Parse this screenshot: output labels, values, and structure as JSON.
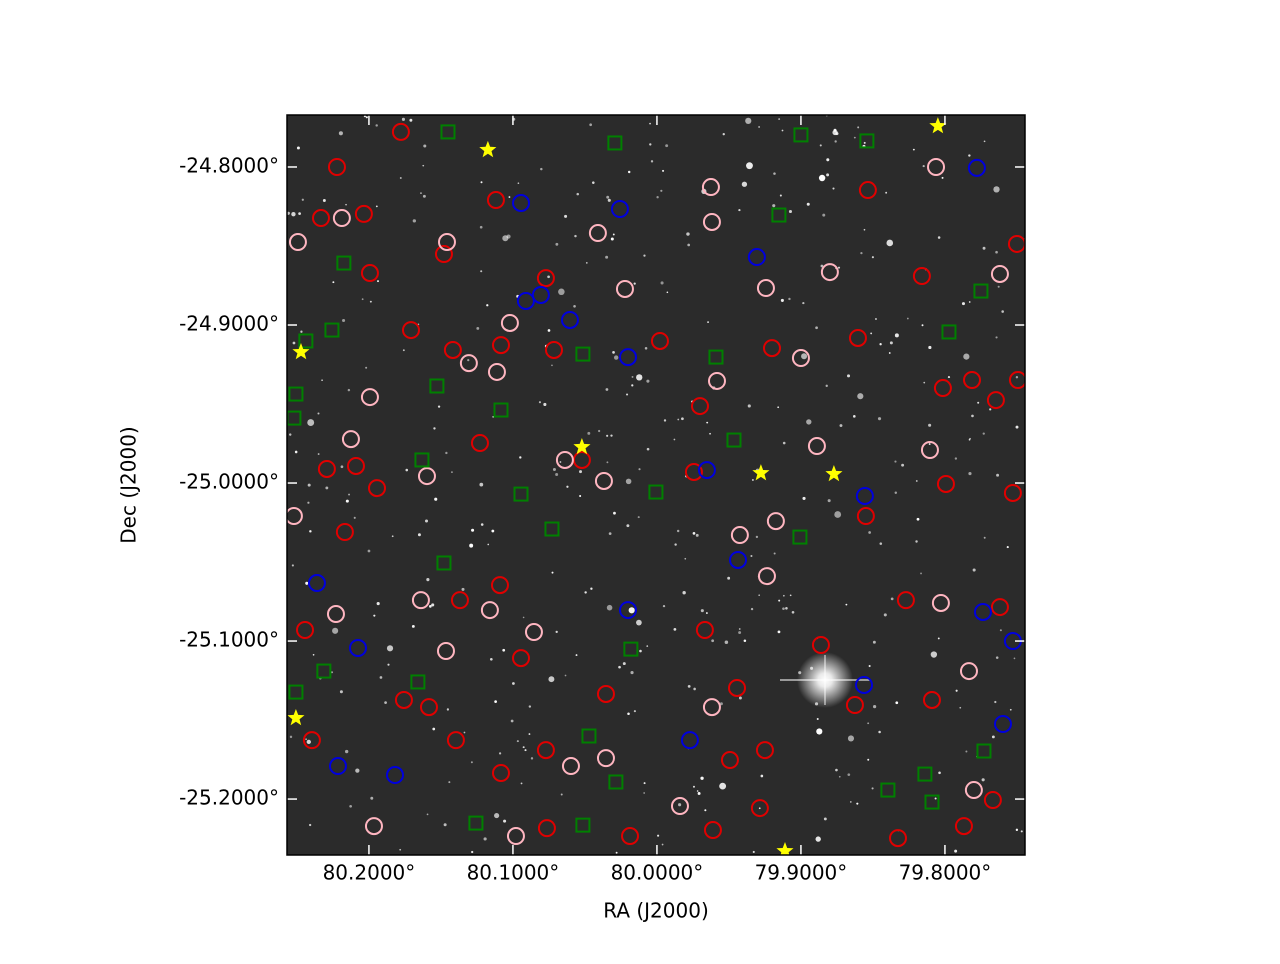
{
  "chart_data": {
    "type": "scatter",
    "xlabel": "RA (J2000)",
    "ylabel": "Dec (J2000)",
    "xlim": [
      80.2569,
      79.7444
    ],
    "ylim": [
      -25.2354,
      -24.7671
    ],
    "xticks": [
      {
        "value": 80.2,
        "label": "80.2000°"
      },
      {
        "value": 80.1,
        "label": "80.1000°"
      },
      {
        "value": 80.0,
        "label": "80.0000°"
      },
      {
        "value": 79.9,
        "label": "79.9000°"
      },
      {
        "value": 79.8,
        "label": "79.8000°"
      }
    ],
    "yticks": [
      {
        "value": -24.8,
        "label": "-24.8000°"
      },
      {
        "value": -24.9,
        "label": "-24.9000°"
      },
      {
        "value": -25.0,
        "label": "-25.0000°"
      },
      {
        "value": -25.1,
        "label": "-25.1000°"
      },
      {
        "value": -25.2,
        "label": "-25.2000°"
      }
    ],
    "series": [
      {
        "marker": "circle",
        "color": "#e00000",
        "x": [
          80.1778,
          80.2222,
          80.1118,
          80.2035,
          80.2333,
          80.1479,
          80.1993,
          80.0771,
          80.1708,
          80.1417,
          80.1083,
          80.0715,
          79.9979,
          79.9701,
          79.9201,
          79.8604,
          79.8014,
          79.7812,
          79.7646,
          80.2292,
          80.209,
          80.1229,
          80.0521,
          79.9743,
          79.8549,
          79.7993,
          79.7528,
          80.1944,
          80.2167,
          80.1368,
          80.109,
          79.9667,
          79.9444,
          79.8861,
          79.8271,
          79.7618,
          80.1757,
          80.1583,
          80.1396,
          80.0944,
          80.0771,
          80.0354,
          79.9493,
          79.925,
          79.8625,
          79.809,
          79.7667,
          79.7868,
          79.8326,
          80.1083,
          80.0764,
          80.0187,
          79.9611,
          79.9285,
          79.7493,
          79.75,
          79.816,
          79.8535,
          80.2444,
          80.2396
        ],
        "y": [
          -24.7778,
          -24.8,
          -24.8209,
          -24.8297,
          -24.8323,
          -24.8551,
          -24.8671,
          -24.8703,
          -24.9032,
          -24.9158,
          -24.9127,
          -24.9158,
          -24.9101,
          -24.9513,
          -24.9146,
          -24.9082,
          -24.9399,
          -24.9348,
          -24.9475,
          -24.9911,
          -24.9892,
          -24.9747,
          -24.9854,
          -24.993,
          -25.0209,
          -25.0006,
          -25.0063,
          -25.0032,
          -25.031,
          -25.0741,
          -25.0646,
          -25.093,
          -25.1297,
          -25.1025,
          -25.0741,
          -25.0785,
          -25.1373,
          -25.1418,
          -25.1627,
          -25.1108,
          -25.169,
          -25.1335,
          -25.1753,
          -25.169,
          -25.1405,
          -25.1373,
          -25.2006,
          -25.2171,
          -25.2247,
          -25.1835,
          -25.2184,
          -25.2234,
          -25.2196,
          -25.2057,
          -24.9348,
          -24.8487,
          -24.869,
          -24.8146,
          -25.093,
          -25.1627
        ]
      },
      {
        "marker": "circle",
        "color": "#ffb6c1",
        "x": [
          80.2493,
          80.2188,
          80.1458,
          80.1021,
          80.1306,
          80.1111,
          80.1993,
          80.2125,
          80.041,
          80.0222,
          79.9625,
          79.9618,
          79.9243,
          79.9,
          79.8889,
          79.8799,
          79.8062,
          79.7618,
          79.8104,
          79.9424,
          79.9174,
          79.9583,
          80.0368,
          80.0639,
          80.1597,
          80.2521,
          80.2229,
          80.1639,
          80.1465,
          80.0854,
          80.0354,
          80.0597,
          79.9618,
          79.9236,
          79.8028,
          79.7833,
          79.7799,
          80.1965,
          80.0979,
          79.984,
          80.116
        ],
        "y": [
          -24.8475,
          -24.8323,
          -24.8475,
          -24.8987,
          -24.9241,
          -24.9297,
          -24.9456,
          -24.9722,
          -24.8418,
          -24.8772,
          -24.8127,
          -24.8348,
          -24.8766,
          -24.9209,
          -24.9766,
          -24.8665,
          -24.8,
          -24.8677,
          -24.9791,
          -25.0329,
          -25.0241,
          -24.9354,
          -24.9987,
          -24.9854,
          -24.9956,
          -25.0209,
          -25.0829,
          -25.0741,
          -25.1063,
          -25.0943,
          -25.1741,
          -25.1791,
          -25.1418,
          -25.0589,
          -25.0759,
          -25.119,
          -25.1943,
          -25.2171,
          -25.2234,
          -25.2044,
          -25.0804
        ]
      },
      {
        "marker": "circle",
        "color": "#0000dd",
        "x": [
          80.0944,
          80.0257,
          79.9306,
          80.091,
          80.0806,
          80.0604,
          80.0201,
          79.9653,
          79.8556,
          79.9437,
          80.2361,
          80.0201,
          80.2076,
          79.7736,
          79.7528,
          79.8562,
          79.7597,
          79.9771,
          80.2215,
          80.1819,
          79.7778
        ],
        "y": [
          -24.8228,
          -24.8266,
          -24.857,
          -24.8848,
          -24.881,
          -24.8968,
          -24.9203,
          -24.9918,
          -25.0082,
          -25.0487,
          -25.0633,
          -25.0804,
          -25.1044,
          -25.0816,
          -25.1,
          -25.1278,
          -25.1525,
          -25.1627,
          -25.1791,
          -25.1848,
          -24.8006
        ]
      },
      {
        "marker": "square",
        "color": "#008000",
        "x": [
          80.1451,
          80.0292,
          79.9,
          79.8542,
          79.9153,
          80.2174,
          79.775,
          80.2257,
          79.7972,
          80.2438,
          80.0514,
          79.959,
          80.1528,
          80.2507,
          80.1083,
          80.2521,
          79.9465,
          80.1632,
          80.0007,
          80.0944,
          80.0729,
          79.9007,
          80.1479,
          80.0181,
          80.2313,
          80.166,
          80.2507,
          80.0472,
          79.7729,
          79.8139,
          80.0285,
          79.8396,
          79.809,
          80.1257,
          80.0514
        ],
        "y": [
          -24.7778,
          -24.7848,
          -24.7797,
          -24.7835,
          -24.8304,
          -24.8608,
          -24.8785,
          -24.9032,
          -24.9044,
          -24.9101,
          -24.9184,
          -24.9203,
          -24.9386,
          -24.9437,
          -24.9538,
          -24.9589,
          -24.9728,
          -24.9854,
          -25.0057,
          -25.007,
          -25.0291,
          -25.0342,
          -25.0506,
          -25.1051,
          -25.119,
          -25.1259,
          -25.1323,
          -25.1601,
          -25.1696,
          -25.1842,
          -25.1892,
          -25.1943,
          -25.2019,
          -25.2152,
          -25.2165
        ]
      },
      {
        "marker": "star",
        "color": "#ffff00",
        "x": [
          80.1174,
          79.8049,
          80.2472,
          80.0521,
          79.9278,
          79.8771,
          80.2507,
          79.9111
        ],
        "y": [
          -24.7892,
          -24.7741,
          -24.9171,
          -24.9772,
          -24.9937,
          -24.9943,
          -25.1487,
          -25.2329
        ]
      }
    ]
  }
}
